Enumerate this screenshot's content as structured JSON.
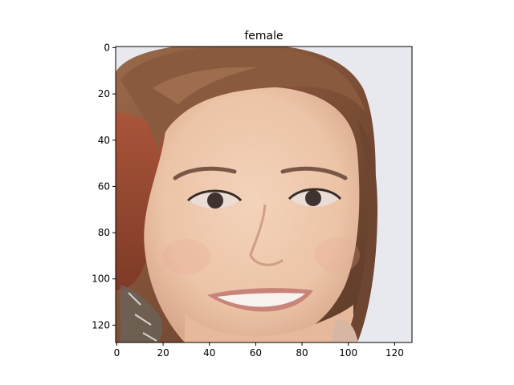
{
  "chart_data": {
    "type": "heatmap",
    "title": "female",
    "xlabel": "",
    "ylabel": "",
    "image_description": "",
    "pixel_grid": {
      "width": 128,
      "height": 128
    },
    "xlim": [
      -0.5,
      127.5
    ],
    "ylim": [
      127.5,
      -0.5
    ],
    "x_ticks": [
      0,
      20,
      40,
      60,
      80,
      100,
      120
    ],
    "y_ticks": [
      0,
      20,
      40,
      60,
      80,
      100,
      120
    ],
    "grid": false,
    "legend": "none"
  },
  "colors": {
    "axes": "#000000",
    "background": "#ffffff",
    "photo_background": "#e8e9ee",
    "hair": "#8a5a3e",
    "hair_dark": "#5c3a28",
    "skin": "#efcbb0",
    "skin_shadow": "#d9a98e",
    "lips": "#c98479",
    "eyes": "#3f3330",
    "brows": "#7a5646",
    "teeth": "#f7f2ee",
    "earring": "#6b6257"
  }
}
